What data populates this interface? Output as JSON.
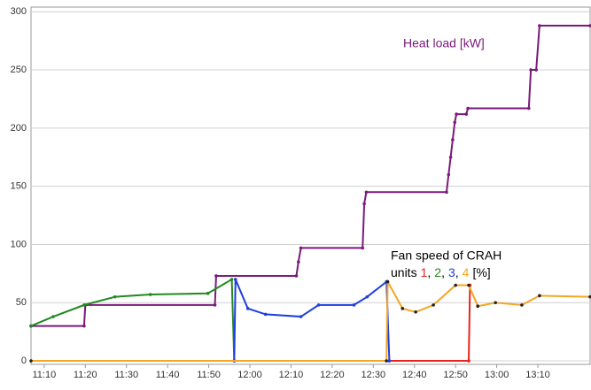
{
  "chart_data": {
    "type": "line",
    "xlim": [
      666.8,
      802.7
    ],
    "ylim": [
      -3,
      304
    ],
    "yticks": [
      0,
      50,
      100,
      150,
      200,
      250,
      300
    ],
    "xticks": [
      {
        "value": 670,
        "label": "11:10"
      },
      {
        "value": 680,
        "label": "11:20"
      },
      {
        "value": 690,
        "label": "11:30"
      },
      {
        "value": 700,
        "label": "11:40"
      },
      {
        "value": 710,
        "label": "11:50"
      },
      {
        "value": 720,
        "label": "12:00"
      },
      {
        "value": 730,
        "label": "12:10"
      },
      {
        "value": 740,
        "label": "12:20"
      },
      {
        "value": 750,
        "label": "12:30"
      },
      {
        "value": 760,
        "label": "12:40"
      },
      {
        "value": 770,
        "label": "12:50"
      },
      {
        "value": 780,
        "label": "13:00"
      },
      {
        "value": 790,
        "label": "13:10"
      }
    ],
    "grid": true,
    "fan_label": {
      "title": "Fan speed of CRAH",
      "prefix": "units",
      "separator": ",",
      "suffix": "[%]"
    },
    "series": [
      {
        "name": "Heat load [kW]",
        "color": "#7b1a7b",
        "x": [
          666.8,
          679.7,
          680,
          711.5,
          711.8,
          731.3,
          731.8,
          732.4,
          747.4,
          747.8,
          748.3,
          767.8,
          768.3,
          768.8,
          769.3,
          769.8,
          770.2,
          772.6,
          773,
          787.8,
          788.3,
          789.6,
          790.4,
          802.7
        ],
        "values": [
          30,
          30,
          48,
          48,
          73,
          73,
          85,
          97,
          97,
          135,
          145,
          145,
          160,
          175,
          190,
          205,
          212,
          212,
          217,
          217,
          250,
          250,
          288,
          288
        ]
      },
      {
        "name": "1",
        "color": "#e8231d",
        "x": [
          753.9,
          773.2,
          773.5
        ],
        "values": [
          0,
          0,
          65
        ]
      },
      {
        "name": "2",
        "color": "#1f8a1f",
        "x": [
          666.8,
          672.2,
          679.7,
          687.2,
          695.8,
          709.8,
          715.6,
          716.2
        ],
        "values": [
          30,
          38,
          48,
          55,
          57,
          58,
          70,
          0
        ]
      },
      {
        "name": "3",
        "color": "#1f3fdc",
        "x": [
          716.2,
          716.5,
          719.5,
          723.8,
          732.4,
          736.7,
          745.3,
          748.5,
          753.2,
          753.9
        ],
        "values": [
          0,
          70,
          45,
          40,
          38,
          48,
          48,
          55,
          68,
          0
        ]
      },
      {
        "name": "4",
        "color": "#f5a623",
        "x": [
          666.8,
          753.2,
          753.5,
          757.1,
          760.3,
          764.6,
          770,
          773.2,
          775.4,
          779.7,
          786.1,
          790.4,
          802.7
        ],
        "values": [
          0,
          0,
          68,
          45,
          42,
          48,
          65,
          65,
          47,
          50,
          48,
          56,
          55
        ]
      }
    ]
  }
}
